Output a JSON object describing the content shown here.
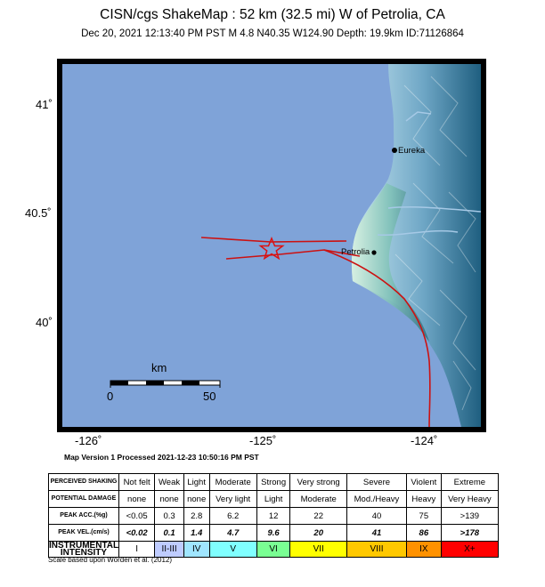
{
  "header": {
    "title": "CISN/cgs ShakeMap : 52 km (32.5 mi) W of Petrolia, CA",
    "subtitle": "Dec 20, 2021 12:13:40 PM PST   M 4.8   N40.35 W124.90   Depth: 19.9km   ID:71126864"
  },
  "map": {
    "lat_labels": [
      "41˚",
      "40.5˚",
      "40˚"
    ],
    "lon_labels": [
      "-126˚",
      "-125˚",
      "-124˚"
    ],
    "cities": [
      {
        "name": "Eureka"
      },
      {
        "name": "Petrolia"
      }
    ],
    "epicenter_icon": "star-icon",
    "scale_bar": {
      "unit": "km",
      "min_label": "0",
      "max_label": "50"
    },
    "colors": {
      "ocean": "#7fa3d8",
      "land_light": "#c6e4f0",
      "land_dark": "#1a5a7a",
      "fault": "#cc1111",
      "epicenter": "#dd1111"
    }
  },
  "map_version": "Map Version 1 Processed 2021-12-23 10:50:16 PM PST",
  "legend": {
    "rows": [
      {
        "header": "PERCEIVED SHAKING",
        "cells": [
          "Not felt",
          "Weak",
          "Light",
          "Moderate",
          "Strong",
          "Very strong",
          "Severe",
          "Violent",
          "Extreme"
        ]
      },
      {
        "header": "POTENTIAL DAMAGE",
        "cells": [
          "none",
          "none",
          "none",
          "Very light",
          "Light",
          "Moderate",
          "Mod./Heavy",
          "Heavy",
          "Very Heavy"
        ]
      },
      {
        "header": "PEAK ACC.(%g)",
        "cells": [
          "<0.05",
          "0.3",
          "2.8",
          "6.2",
          "12",
          "22",
          "40",
          "75",
          ">139"
        ]
      },
      {
        "header": "PEAK VEL.(cm/s)",
        "cells": [
          "<0.02",
          "0.1",
          "1.4",
          "4.7",
          "9.6",
          "20",
          "41",
          "86",
          ">178"
        ]
      },
      {
        "header": "INSTRUMENTAL INTENSITY",
        "cells": [
          "I",
          "II-III",
          "IV",
          "V",
          "VI",
          "VII",
          "VIII",
          "IX",
          "X+"
        ]
      }
    ],
    "intensity_colors": [
      "#ffffff",
      "#bfccff",
      "#a0e6ff",
      "#80ffff",
      "#7aff93",
      "#ffff00",
      "#ffc800",
      "#ff9100",
      "#ff0000"
    ]
  },
  "footnote": "Scale based upon Worden et al. (2012)"
}
